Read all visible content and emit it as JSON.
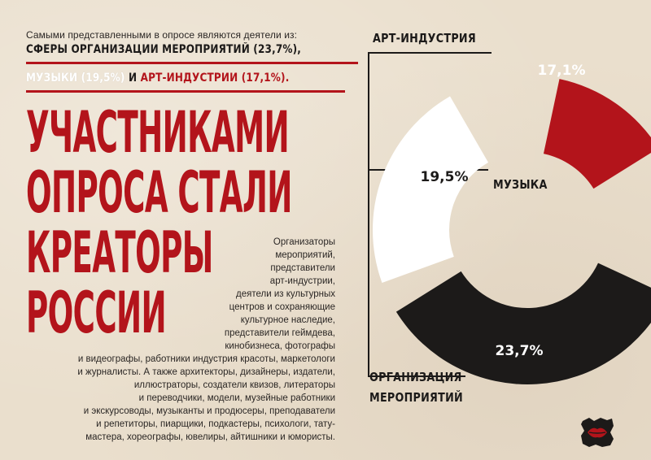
{
  "intro_text": "Самыми представленными в опросе являются деятели из:",
  "highlight": {
    "line1": "СФЕРЫ ОРГАНИЗАЦИИ МЕРОПРИЯТИЙ (23,7%),",
    "music": "МУЗЫКИ (19,5%)",
    "and": "И",
    "art": "АРТ-ИНДУСТРИИ (17,1%)."
  },
  "title_lines": [
    "УЧАСТНИКАМИ",
    "ОПРОСА СТАЛИ",
    "КРЕАТОРЫ",
    "РОССИИ"
  ],
  "body_lines": [
    "Организаторы",
    "мероприятий,",
    "представители",
    "арт-индустрии,",
    "деятели из культурных",
    "центров и сохраняющие",
    "культурное наследие,",
    "представители геймдева,",
    "кинобизнеса, фотографы",
    "и видеографы, работники индустрия красоты, маркетологи",
    "и журналисты. А также архитекторы, дизайнеры, издатели,",
    "иллюстраторы, создатели квизов, литераторы",
    "и переводчики, модели, музейные работники",
    "и экскурсоводы, музыканты и продюсеры, преподаватели",
    "и репетиторы, пиарщики, подкастеры, психологи, тату-",
    "мастера, хореографы, ювелиры, айтишники и юмористы."
  ],
  "labels": {
    "art": "АРТ-ИНДУСТРИЯ",
    "music": "МУЗЫКА",
    "events_1": "ОРГАНИЗАЦИЯ",
    "events_2": "МЕРОПРИЯТИЙ"
  },
  "chart_data": {
    "type": "pie",
    "variant": "partial-ring",
    "slices": [
      {
        "name": "АРТ-ИНДУСТРИЯ",
        "value": 17.1,
        "label": "17,1%",
        "color": "#b3141b"
      },
      {
        "name": "МУЗЫКА",
        "value": 19.5,
        "label": "19,5%",
        "color": "#ffffff"
      },
      {
        "name": "ОРГАНИЗАЦИЯ МЕРОПРИЯТИЙ",
        "value": 23.7,
        "label": "23,7%",
        "color": "#1c1a19"
      }
    ]
  },
  "colors": {
    "background": "#eadfcd",
    "accent_red": "#b3141b",
    "dark": "#1c1a19",
    "white": "#ffffff"
  },
  "logo_icon": "lips-logo-icon"
}
